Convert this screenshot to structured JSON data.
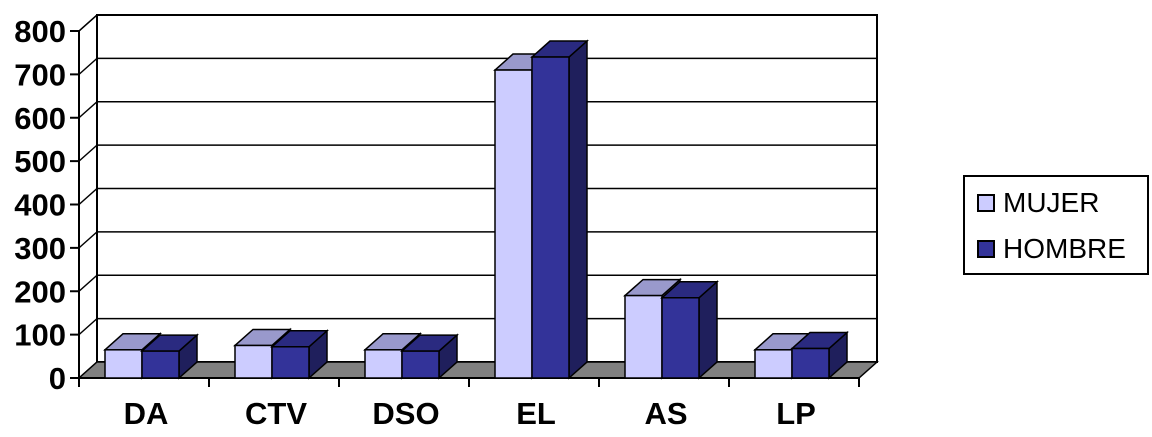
{
  "chart_data": {
    "type": "bar",
    "categories": [
      "DA",
      "CTV",
      "DSO",
      "EL",
      "AS",
      "LP"
    ],
    "series": [
      {
        "name": "MUJER",
        "values": [
          65,
          75,
          65,
          710,
          190,
          65
        ],
        "color": "#ccccff",
        "topColor": "#9999cc",
        "sideColor": "#8a8ab8"
      },
      {
        "name": "HOMBRE",
        "values": [
          62,
          72,
          62,
          740,
          185,
          68
        ],
        "color": "#333399",
        "topColor": "#2a2a80",
        "sideColor": "#1f1f5c"
      }
    ],
    "ylim": [
      0,
      800
    ],
    "yticks": [
      "0",
      "100",
      "200",
      "300",
      "400",
      "500",
      "600",
      "700",
      "800"
    ],
    "grid": true,
    "legend_position": "right",
    "chart_style": "3d-clustered-column",
    "floor_color": "#808080"
  }
}
